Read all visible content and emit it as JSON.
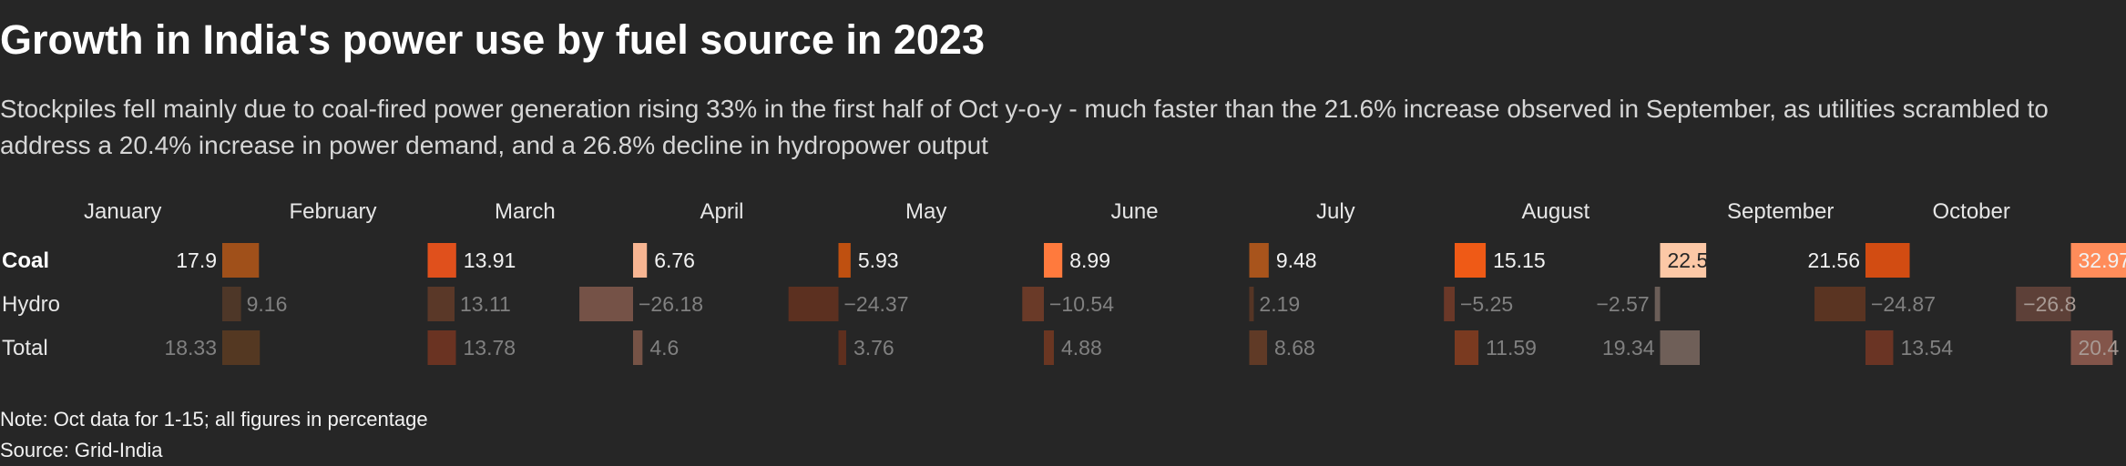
{
  "title": "Growth in India's power use by fuel source in 2023",
  "subtitle": "Stockpiles fell mainly due to coal-fired power generation rising 33% in the first half of Oct y-o-y - much faster than the 21.6% increase observed in September, as utilities scrambled to address a 20.4% increase in power demand, and a 26.8% decline in hydropower output",
  "note": "Note: Oct data for 1-15; all figures in percentage",
  "source": "Source: Grid-India",
  "chart_data": {
    "type": "bar",
    "categories": [
      "January",
      "February",
      "March",
      "April",
      "May",
      "June",
      "July",
      "August",
      "September",
      "October"
    ],
    "series": [
      {
        "name": "Coal",
        "values": [
          17.9,
          13.91,
          6.76,
          5.93,
          8.99,
          9.48,
          15.15,
          22.5,
          21.56,
          32.97
        ]
      },
      {
        "name": "Hydro",
        "values": [
          9.16,
          13.11,
          -26.18,
          -24.37,
          -10.54,
          2.19,
          -5.25,
          -2.57,
          -24.87,
          -26.8
        ]
      },
      {
        "name": "Total",
        "values": [
          18.33,
          13.78,
          4.6,
          3.76,
          4.88,
          8.68,
          11.59,
          19.34,
          13.54,
          20.4
        ]
      }
    ],
    "colors": {
      "Coal": [
        "#a0501a",
        "#e0501c",
        "#f7b592",
        "#bf5010",
        "#ff7a3d",
        "#a8541c",
        "#ef5a16",
        "#fcc8a6",
        "#d24c12",
        "#ff8c5a"
      ],
      "Hydro": [
        "#4e3728",
        "#5a3828",
        "#755247",
        "#5c3020",
        "#6a3a28",
        "#553525",
        "#6a3828",
        "#6b5e58",
        "#5a3422",
        "#5d4038"
      ],
      "Total": [
        "#543822",
        "#6a3322",
        "#765346",
        "#5e2f1e",
        "#6a3622",
        "#603a26",
        "#7a3a20",
        "#6f5f58",
        "#6a3424",
        "#83554a"
      ]
    },
    "bold_series": "Coal",
    "label_tone": {
      "Coal": "light",
      "Hydro": "dim",
      "Total": "dim"
    },
    "label_inside": {
      "Coal": [
        false,
        false,
        false,
        false,
        false,
        false,
        false,
        true,
        false,
        true
      ],
      "Hydro": [
        false,
        false,
        false,
        false,
        false,
        false,
        false,
        false,
        false,
        true
      ],
      "Total": [
        false,
        false,
        false,
        false,
        false,
        false,
        false,
        false,
        false,
        true
      ]
    }
  }
}
